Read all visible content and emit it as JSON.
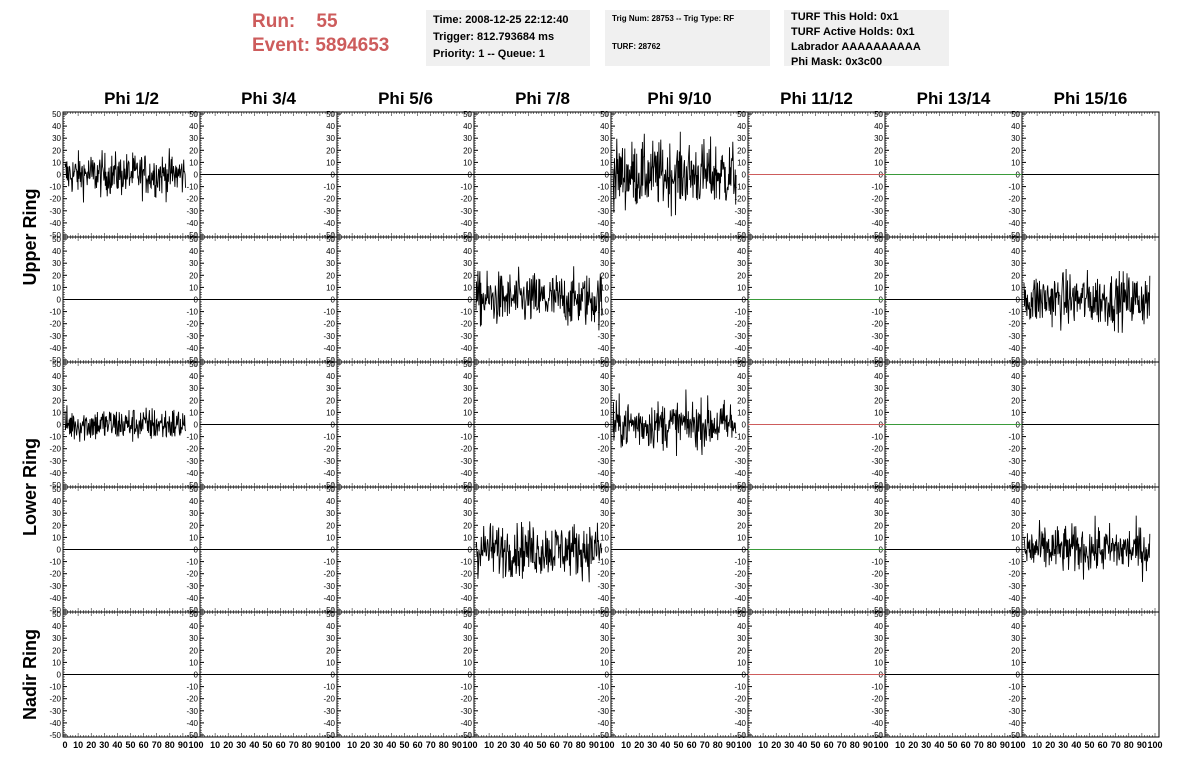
{
  "header": {
    "run_label": "Run:",
    "run_value": "55",
    "event_label": "Event:",
    "event_value": "5894653",
    "title_color": "#cd5c5c"
  },
  "time_box": {
    "time": "Time: 2008-12-25 22:12:40",
    "trigger": "Trigger: 812.793684 ms",
    "priority": "Priority: 1 -- Queue: 1"
  },
  "trig_box": {
    "trig_line": "Trig Num: 28753 -- Trig Type: RF",
    "turf_line": "TURF: 28762"
  },
  "turf_box": {
    "this_hold": "TURF This Hold: 0x1",
    "active_holds": "TURF Active Holds: 0x1",
    "labrador": "Labrador AAAAAAAAAA",
    "phi_mask": "Phi Mask: 0x3c00"
  },
  "columns": [
    "Phi 1/2",
    "Phi 3/4",
    "Phi 5/6",
    "Phi 7/8",
    "Phi 9/10",
    "Phi 11/12",
    "Phi 13/14",
    "Phi 15/16"
  ],
  "rows": [
    {
      "label": "Upper Ring",
      "span": 2
    },
    {
      "label": "Lower Ring",
      "span": 2
    },
    {
      "label": "Nadir Ring",
      "span": 1
    }
  ],
  "chart_data": {
    "type": "line",
    "title": "",
    "xlabel": "",
    "ylabel": "",
    "ylim": [
      -50,
      50
    ],
    "xlim": [
      0,
      100
    ],
    "y_ticks": [
      50,
      40,
      30,
      20,
      10,
      0,
      -10,
      -20,
      -30,
      -40,
      -50
    ],
    "x_tick_labels_first": [
      "0",
      "10",
      "20",
      "30",
      "40",
      "50",
      "60",
      "70",
      "80",
      "90",
      "100"
    ],
    "x_tick_labels_other": [
      "10",
      "20",
      "30",
      "40",
      "50",
      "60",
      "70",
      "80",
      "90",
      "100"
    ],
    "flat_line_color": "#000000",
    "masked_line_color": "#cd5c5c",
    "green_line_color": "#3a9a3a",
    "trace_color": "#000000",
    "panels": [
      {
        "row": 0,
        "col": 0,
        "kind": "noise",
        "amplitude": 16,
        "x_end": 92
      },
      {
        "row": 0,
        "col": 4,
        "kind": "noise",
        "amplitude": 25,
        "x_end": 94
      },
      {
        "row": 0,
        "col": 5,
        "kind": "flat",
        "color": "#cd5c5c"
      },
      {
        "row": 0,
        "col": 6,
        "kind": "flat",
        "color": "#3a9a3a"
      },
      {
        "row": 1,
        "col": 3,
        "kind": "noise",
        "amplitude": 20,
        "x_end": 96
      },
      {
        "row": 1,
        "col": 5,
        "kind": "flat",
        "color": "#3a9a3a"
      },
      {
        "row": 1,
        "col": 7,
        "kind": "noise",
        "amplitude": 20,
        "x_end": 96
      },
      {
        "row": 2,
        "col": 0,
        "kind": "noise",
        "amplitude": 13,
        "x_end": 92
      },
      {
        "row": 2,
        "col": 4,
        "kind": "noise",
        "amplitude": 18,
        "x_end": 94
      },
      {
        "row": 2,
        "col": 5,
        "kind": "flat",
        "color": "#cd5c5c"
      },
      {
        "row": 2,
        "col": 6,
        "kind": "flat",
        "color": "#3a9a3a"
      },
      {
        "row": 3,
        "col": 3,
        "kind": "noise",
        "amplitude": 20,
        "x_end": 96
      },
      {
        "row": 3,
        "col": 5,
        "kind": "flat",
        "color": "#3a9a3a"
      },
      {
        "row": 3,
        "col": 7,
        "kind": "noise",
        "amplitude": 18,
        "x_end": 96
      },
      {
        "row": 4,
        "col": 5,
        "kind": "flat",
        "color": "#cd5c5c"
      }
    ]
  }
}
